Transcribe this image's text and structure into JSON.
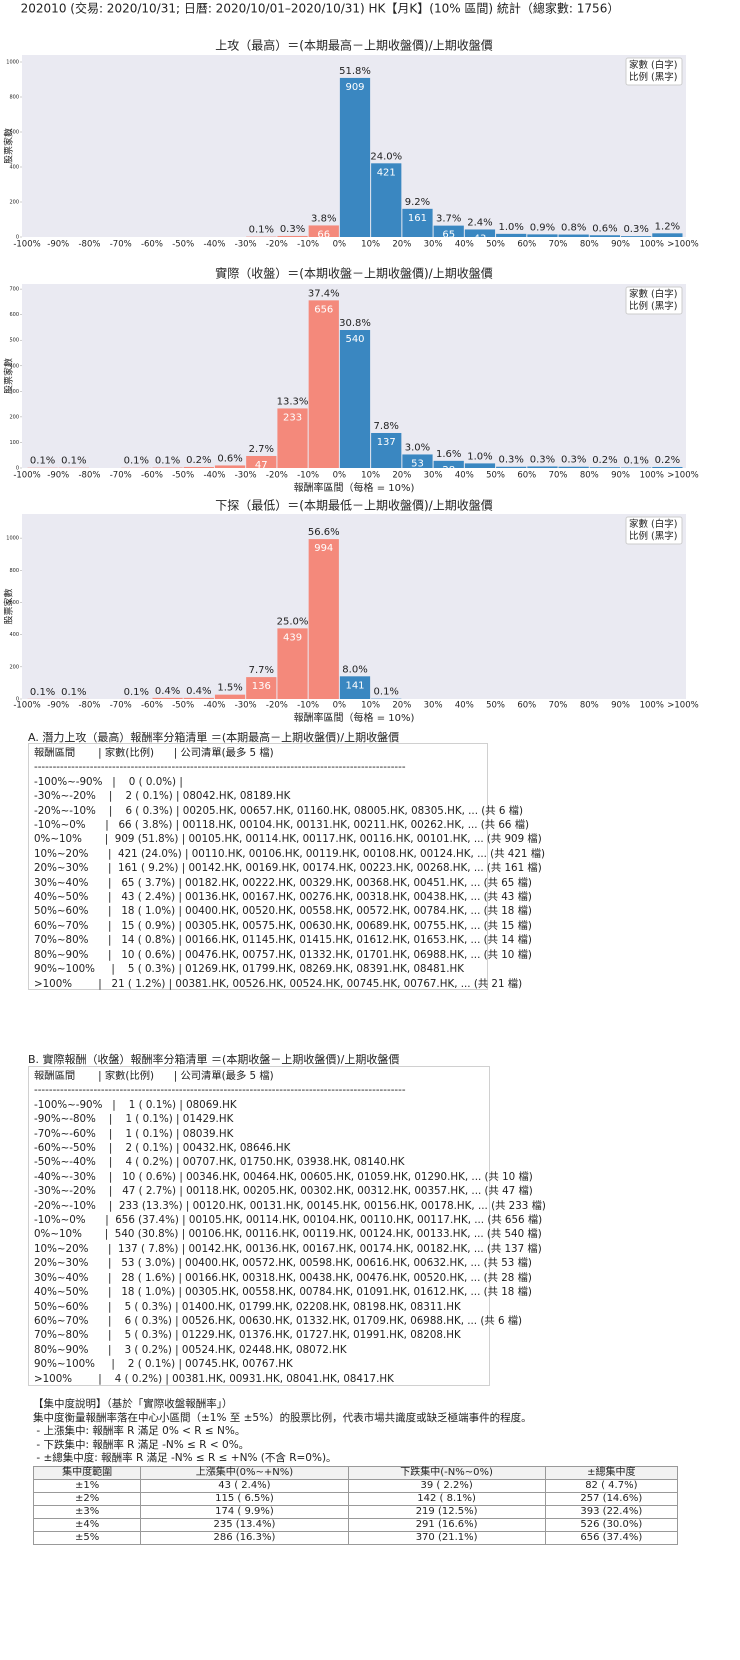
{
  "header": "202010 (交易: 2020/10/31; 日曆: 2020/10/01–2020/10/31) HK【月K】(10% 區間) 統計（總家數: 1756）",
  "chart_data": [
    {
      "type": "histogram",
      "title": "上攻（最高）＝(本期最高－上期收盤價)/上期收盤價",
      "ylabel": "股票家數",
      "bins": [
        "-100%",
        "-90%",
        "-80%",
        "-70%",
        "-60%",
        "-50%",
        "-40%",
        "-30%",
        "-20%",
        "-10%",
        "0%",
        "10%",
        "20%",
        "30%",
        "40%",
        "50%",
        "60%",
        "70%",
        "80%",
        "90%",
        "100%",
        ">100%"
      ],
      "values": [
        0,
        0,
        0,
        0,
        0,
        0,
        0,
        2,
        6,
        66,
        909,
        421,
        161,
        65,
        43,
        18,
        15,
        14,
        10,
        5,
        21
      ],
      "percent_labels": [
        null,
        null,
        null,
        null,
        null,
        null,
        null,
        "0.1%",
        "0.3%",
        "3.8%",
        "51.8%",
        "24.0%",
        "9.2%",
        "3.7%",
        "2.4%",
        "1.0%",
        "0.9%",
        "0.8%",
        "0.6%",
        "0.3%",
        "1.2%"
      ],
      "colors": [
        "#f4897b",
        "#f4897b",
        "#f4897b",
        "#f4897b",
        "#f4897b",
        "#f4897b",
        "#f4897b",
        "#f4897b",
        "#f4897b",
        "#f4897b",
        "#3a87c1",
        "#3a87c1",
        "#3a87c1",
        "#3a87c1",
        "#3a87c1",
        "#3a87c1",
        "#3a87c1",
        "#3a87c1",
        "#3a87c1",
        "#3a87c1",
        "#3a87c1"
      ],
      "ylim": [
        0,
        1040
      ],
      "yticks": [
        0,
        200,
        400,
        600,
        800,
        1000
      ],
      "legend": [
        "家數 (白字)",
        "比例 (黑字)"
      ],
      "legend_position": "upper right",
      "background": "#eaeaf2"
    },
    {
      "type": "histogram",
      "title": "實際（收盤）＝(本期收盤－上期收盤價)/上期收盤價",
      "ylabel": "股票家數",
      "xlabel": "報酬率區間（每格 = 10%)",
      "bins": [
        "-100%",
        "-90%",
        "-80%",
        "-70%",
        "-60%",
        "-50%",
        "-40%",
        "-30%",
        "-20%",
        "-10%",
        "0%",
        "10%",
        "20%",
        "30%",
        "40%",
        "50%",
        "60%",
        "70%",
        "80%",
        "90%",
        "100%",
        ">100%"
      ],
      "values": [
        1,
        1,
        0,
        1,
        2,
        4,
        10,
        47,
        233,
        656,
        540,
        137,
        53,
        28,
        18,
        5,
        6,
        5,
        3,
        2,
        4
      ],
      "percent_labels": [
        "0.1%",
        "0.1%",
        null,
        "0.1%",
        "0.1%",
        "0.2%",
        "0.6%",
        "2.7%",
        "13.3%",
        "37.4%",
        "30.8%",
        "7.8%",
        "3.0%",
        "1.6%",
        "1.0%",
        "0.3%",
        "0.3%",
        "0.3%",
        "0.2%",
        "0.1%",
        "0.2%"
      ],
      "colors": [
        "#f4897b",
        "#f4897b",
        "#f4897b",
        "#f4897b",
        "#f4897b",
        "#f4897b",
        "#f4897b",
        "#f4897b",
        "#f4897b",
        "#f4897b",
        "#3a87c1",
        "#3a87c1",
        "#3a87c1",
        "#3a87c1",
        "#3a87c1",
        "#3a87c1",
        "#3a87c1",
        "#3a87c1",
        "#3a87c1",
        "#3a87c1",
        "#3a87c1"
      ],
      "ylim": [
        0,
        720
      ],
      "yticks": [
        0,
        100,
        200,
        300,
        400,
        500,
        600,
        700
      ],
      "legend": [
        "家數 (白字)",
        "比例 (黑字)"
      ],
      "legend_position": "upper right",
      "background": "#eaeaf2"
    },
    {
      "type": "histogram",
      "title": "下探（最低）＝(本期最低－上期收盤價)/上期收盤價",
      "ylabel": "股票家數",
      "xlabel": "報酬率區間（每格 = 10%)",
      "bins": [
        "-100%",
        "-90%",
        "-80%",
        "-70%",
        "-60%",
        "-50%",
        "-40%",
        "-30%",
        "-20%",
        "-10%",
        "0%",
        "10%",
        "20%",
        "30%",
        "40%",
        "50%",
        "60%",
        "70%",
        "80%",
        "90%",
        "100%",
        ">100%"
      ],
      "values": [
        1,
        1,
        0,
        1,
        7,
        7,
        27,
        136,
        439,
        994,
        141,
        2,
        0,
        0,
        0,
        0,
        0,
        0,
        0,
        0,
        0
      ],
      "percent_labels": [
        "0.1%",
        "0.1%",
        null,
        "0.1%",
        "0.4%",
        "0.4%",
        "1.5%",
        "7.7%",
        "25.0%",
        "56.6%",
        "8.0%",
        "0.1%",
        null,
        null,
        null,
        null,
        null,
        null,
        null,
        null,
        null
      ],
      "colors": [
        "#f4897b",
        "#f4897b",
        "#f4897b",
        "#f4897b",
        "#f4897b",
        "#f4897b",
        "#f4897b",
        "#f4897b",
        "#f4897b",
        "#f4897b",
        "#3a87c1",
        "#3a87c1",
        "#3a87c1",
        "#3a87c1",
        "#3a87c1",
        "#3a87c1",
        "#3a87c1",
        "#3a87c1",
        "#3a87c1",
        "#3a87c1",
        "#3a87c1"
      ],
      "ylim": [
        0,
        1150
      ],
      "yticks": [
        0,
        200,
        400,
        600,
        800,
        1000
      ],
      "legend": [
        "家數 (白字)",
        "比例 (黑字)"
      ],
      "legend_position": "upper right",
      "background": "#eaeaf2"
    }
  ],
  "section_a": {
    "title": "A. 潛力上攻（最高）報酬率分箱清單 ＝(本期最高－上期收盤價)/上期收盤價",
    "header": "報酬區間       | 家數(比例)      | 公司清單(最多 5 檔)",
    "separator": "----------------------------------------------------------------------------------------------------",
    "rows": [
      "-100%~-90%   |    0 ( 0.0%) |",
      "-30%~-20%    |    2 ( 0.1%) | 08042.HK, 08189.HK",
      "-20%~-10%    |    6 ( 0.3%) | 00205.HK, 00657.HK, 01160.HK, 08005.HK, 08305.HK, ... (共 6 檔)",
      "-10%~0%      |   66 ( 3.8%) | 00118.HK, 00104.HK, 00131.HK, 00211.HK, 00262.HK, ... (共 66 檔)",
      "0%~10%       |  909 (51.8%) | 00105.HK, 00114.HK, 00117.HK, 00116.HK, 00101.HK, ... (共 909 檔)",
      "10%~20%      |  421 (24.0%) | 00110.HK, 00106.HK, 00119.HK, 00108.HK, 00124.HK, ... (共 421 檔)",
      "20%~30%      |  161 ( 9.2%) | 00142.HK, 00169.HK, 00174.HK, 00223.HK, 00268.HK, ... (共 161 檔)",
      "30%~40%      |   65 ( 3.7%) | 00182.HK, 00222.HK, 00329.HK, 00368.HK, 00451.HK, ... (共 65 檔)",
      "40%~50%      |   43 ( 2.4%) | 00136.HK, 00167.HK, 00276.HK, 00318.HK, 00438.HK, ... (共 43 檔)",
      "50%~60%      |   18 ( 1.0%) | 00400.HK, 00520.HK, 00558.HK, 00572.HK, 00784.HK, ... (共 18 檔)",
      "60%~70%      |   15 ( 0.9%) | 00305.HK, 00575.HK, 00630.HK, 00689.HK, 00755.HK, ... (共 15 檔)",
      "70%~80%      |   14 ( 0.8%) | 00166.HK, 01145.HK, 01415.HK, 01612.HK, 01653.HK, ... (共 14 檔)",
      "80%~90%      |   10 ( 0.6%) | 00476.HK, 00757.HK, 01332.HK, 01701.HK, 06988.HK, ... (共 10 檔)",
      "90%~100%     |    5 ( 0.3%) | 01269.HK, 01799.HK, 08269.HK, 08391.HK, 08481.HK",
      ">100%        |   21 ( 1.2%) | 00381.HK, 00526.HK, 00524.HK, 00745.HK, 00767.HK, ... (共 21 檔)"
    ]
  },
  "section_b": {
    "title": "B. 實際報酬（收盤）報酬率分箱清單 ＝(本期收盤－上期收盤價)/上期收盤價",
    "header": "報酬區間       | 家數(比例)      | 公司清單(最多 5 檔)",
    "separator": "----------------------------------------------------------------------------------------------------",
    "rows": [
      "-100%~-90%   |    1 ( 0.1%) | 08069.HK",
      "-90%~-80%    |    1 ( 0.1%) | 01429.HK",
      "-70%~-60%    |    1 ( 0.1%) | 08039.HK",
      "-60%~-50%    |    2 ( 0.1%) | 00432.HK, 08646.HK",
      "-50%~-40%    |    4 ( 0.2%) | 00707.HK, 01750.HK, 03938.HK, 08140.HK",
      "-40%~-30%    |   10 ( 0.6%) | 00346.HK, 00464.HK, 00605.HK, 01059.HK, 01290.HK, ... (共 10 檔)",
      "-30%~-20%    |   47 ( 2.7%) | 00118.HK, 00205.HK, 00302.HK, 00312.HK, 00357.HK, ... (共 47 檔)",
      "-20%~-10%    |  233 (13.3%) | 00120.HK, 00131.HK, 00145.HK, 00156.HK, 00178.HK, ... (共 233 檔)",
      "-10%~0%      |  656 (37.4%) | 00105.HK, 00114.HK, 00104.HK, 00110.HK, 00117.HK, ... (共 656 檔)",
      "0%~10%       |  540 (30.8%) | 00106.HK, 00116.HK, 00119.HK, 00124.HK, 00133.HK, ... (共 540 檔)",
      "10%~20%      |  137 ( 7.8%) | 00142.HK, 00136.HK, 00167.HK, 00174.HK, 00182.HK, ... (共 137 檔)",
      "20%~30%      |   53 ( 3.0%) | 00400.HK, 00572.HK, 00598.HK, 00616.HK, 00632.HK, ... (共 53 檔)",
      "30%~40%      |   28 ( 1.6%) | 00166.HK, 00318.HK, 00438.HK, 00476.HK, 00520.HK, ... (共 28 檔)",
      "40%~50%      |   18 ( 1.0%) | 00305.HK, 00558.HK, 00784.HK, 01091.HK, 01612.HK, ... (共 18 檔)",
      "50%~60%      |    5 ( 0.3%) | 01400.HK, 01799.HK, 02208.HK, 08198.HK, 08311.HK",
      "60%~70%      |    6 ( 0.3%) | 00526.HK, 00630.HK, 01332.HK, 01709.HK, 06988.HK, ... (共 6 檔)",
      "70%~80%      |    5 ( 0.3%) | 01229.HK, 01376.HK, 01727.HK, 01991.HK, 08208.HK",
      "80%~90%      |    3 ( 0.2%) | 00524.HK, 02448.HK, 08072.HK",
      "90%~100%     |    2 ( 0.1%) | 00745.HK, 00767.HK",
      ">100%        |    4 ( 0.2%) | 00381.HK, 00931.HK, 08041.HK, 08417.HK"
    ]
  },
  "concentration": {
    "title": "【集中度說明】（基於「實際收盤報酬率」）",
    "description": "集中度衡量報酬率落在中心小區間（±1% 至 ±5%）的股票比例，代表市場共識度或缺乏極端事件的程度。",
    "notes": [
      " - 上漲集中: 報酬率 R 滿足 0% < R ≤ N%。",
      " - 下跌集中: 報酬率 R 滿足 -N% ≤ R < 0%。",
      " - ±總集中度: 報酬率 R 滿足 -N% ≤ R ≤ +N% (不含 R=0%)。"
    ],
    "table": {
      "header": [
        "集中度範圍",
        "上漲集中(0%~+N%)",
        "下跌集中(-N%~0%)",
        "±總集中度"
      ],
      "rows": [
        [
          "±1%",
          "43 ( 2.4%)",
          "39 ( 2.2%)",
          "82 ( 4.7%)"
        ],
        [
          "±2%",
          "115 ( 6.5%)",
          "142 ( 8.1%)",
          "257 (14.6%)"
        ],
        [
          "±3%",
          "174 ( 9.9%)",
          "219 (12.5%)",
          "393 (22.4%)"
        ],
        [
          "±4%",
          "235 (13.4%)",
          "291 (16.6%)",
          "526 (30.0%)"
        ],
        [
          "±5%",
          "286 (16.3%)",
          "370 (21.1%)",
          "656 (37.4%)"
        ]
      ]
    }
  }
}
